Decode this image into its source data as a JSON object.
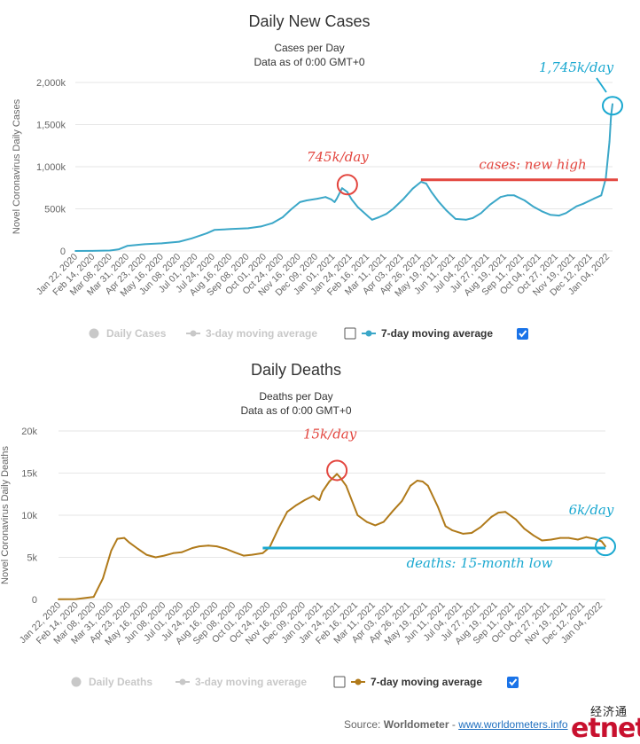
{
  "colors": {
    "cases_line": "#3ba7c8",
    "deaths_line": "#b07a1a",
    "annotation_red": "#e3463f",
    "annotation_cyan": "#1aa8d0",
    "grid": "#e6e6e6",
    "axis_text": "#666666",
    "checkbox_checked": "#1a73e8"
  },
  "footer": {
    "source_label": "Source:",
    "source_name": "Worldometer",
    "dash": "-",
    "link": "www.worldometers.info"
  },
  "logo": {
    "chinese": "经济通",
    "latin": "etnet"
  },
  "chart_data": [
    {
      "type": "line",
      "title": "Daily New Cases",
      "subtitle_1": "Cases per Day",
      "subtitle_2": "Data as of 0:00 GMT+0",
      "ylabel": "Novel Coronavirus Daily Cases",
      "ylim": [
        0,
        2000000
      ],
      "yticks": [
        0,
        500000,
        1000000,
        1500000,
        2000000
      ],
      "ytick_labels": [
        "0",
        "500k",
        "1,000k",
        "1,500k",
        "2,000k"
      ],
      "xlim": [
        "2020-01-22",
        "2022-01-06"
      ],
      "xtick_labels": [
        "Jan 22, 2020",
        "Feb 14, 2020",
        "Mar 08, 2020",
        "Mar 31, 2020",
        "Apr 23, 2020",
        "May 16, 2020",
        "Jun 08, 2020",
        "Jul 01, 2020",
        "Jul 24, 2020",
        "Aug 16, 2020",
        "Sep 08, 2020",
        "Oct 01, 2020",
        "Oct 24, 2020",
        "Nov 16, 2020",
        "Dec 09, 2020",
        "Jan 01, 2021",
        "Jan 24, 2021",
        "Feb 16, 2021",
        "Mar 11, 2021",
        "Apr 03, 2021",
        "Apr 26, 2021",
        "May 19, 2021",
        "Jun 11, 2021",
        "Jul 04, 2021",
        "Jul 27, 2021",
        "Aug 19, 2021",
        "Sep 11, 2021",
        "Oct 04, 2021",
        "Oct 27, 2021",
        "Nov 19, 2021",
        "Dec 12, 2021",
        "Jan 04, 2022"
      ],
      "grid": true,
      "legend_placement": "bottom",
      "legend": [
        {
          "label": "Daily Cases",
          "active": false,
          "marker": "circle"
        },
        {
          "label": "3-day moving average",
          "active": false,
          "marker": "line-dot",
          "checked": false
        },
        {
          "label": "7-day moving average",
          "active": true,
          "marker": "line-dot",
          "checked": true
        }
      ],
      "series": [
        {
          "name": "7-day moving average",
          "x": [
            "2020-01-22",
            "2020-02-14",
            "2020-03-08",
            "2020-03-20",
            "2020-03-31",
            "2020-04-23",
            "2020-05-16",
            "2020-06-08",
            "2020-06-25",
            "2020-07-15",
            "2020-07-25",
            "2020-08-16",
            "2020-09-08",
            "2020-09-25",
            "2020-10-10",
            "2020-10-24",
            "2020-11-05",
            "2020-11-16",
            "2020-11-25",
            "2020-12-09",
            "2020-12-20",
            "2020-12-28",
            "2021-01-01",
            "2021-01-04",
            "2021-01-11",
            "2021-01-18",
            "2021-01-24",
            "2021-02-01",
            "2021-02-16",
            "2021-02-20",
            "2021-03-01",
            "2021-03-11",
            "2021-03-20",
            "2021-04-03",
            "2021-04-15",
            "2021-04-26",
            "2021-05-03",
            "2021-05-10",
            "2021-05-19",
            "2021-05-30",
            "2021-06-11",
            "2021-06-25",
            "2021-07-04",
            "2021-07-15",
            "2021-07-27",
            "2021-08-10",
            "2021-08-19",
            "2021-08-28",
            "2021-09-11",
            "2021-09-22",
            "2021-10-04",
            "2021-10-15",
            "2021-10-27",
            "2021-11-05",
            "2021-11-19",
            "2021-11-28",
            "2021-12-12",
            "2021-12-22",
            "2021-12-28",
            "2022-01-02",
            "2022-01-04",
            "2022-01-06"
          ],
          "y": [
            0,
            1000,
            5000,
            20000,
            60000,
            80000,
            90000,
            110000,
            150000,
            210000,
            250000,
            260000,
            270000,
            290000,
            330000,
            400000,
            500000,
            580000,
            600000,
            620000,
            640000,
            610000,
            580000,
            620000,
            745000,
            700000,
            610000,
            520000,
            400000,
            370000,
            400000,
            440000,
            500000,
            620000,
            740000,
            820000,
            800000,
            700000,
            590000,
            480000,
            380000,
            370000,
            390000,
            450000,
            550000,
            640000,
            660000,
            660000,
            600000,
            530000,
            470000,
            430000,
            420000,
            450000,
            530000,
            560000,
            620000,
            660000,
            860000,
            1300000,
            1600000,
            1745000
          ]
        }
      ],
      "annotations": [
        {
          "text": "745k/day",
          "color": "red",
          "x": "2021-01-11",
          "y": 745000
        },
        {
          "text": "1,745k/day",
          "color": "cyan",
          "x": "2022-01-06",
          "y": 1745000
        },
        {
          "text": "cases: new high",
          "color": "red",
          "line_y": 845000,
          "line_x_start": "2021-04-26"
        }
      ]
    },
    {
      "type": "line",
      "title": "Daily Deaths",
      "subtitle_1": "Deaths per Day",
      "subtitle_2": "Data as of 0:00 GMT+0",
      "ylabel": "Novel Coronavirus Daily Deaths",
      "ylim": [
        0,
        20000
      ],
      "yticks": [
        0,
        5000,
        10000,
        15000,
        20000
      ],
      "ytick_labels": [
        "0",
        "5k",
        "10k",
        "15k",
        "20k"
      ],
      "xlim": [
        "2020-01-22",
        "2022-01-06"
      ],
      "xtick_labels": [
        "Jan 22, 2020",
        "Feb 14, 2020",
        "Mar 08, 2020",
        "Mar 31, 2020",
        "Apr 23, 2020",
        "May 16, 2020",
        "Jun 08, 2020",
        "Jul 01, 2020",
        "Jul 24, 2020",
        "Aug 16, 2020",
        "Sep 08, 2020",
        "Oct 01, 2020",
        "Oct 24, 2020",
        "Nov 16, 2020",
        "Dec 09, 2020",
        "Jan 01, 2021",
        "Jan 24, 2021",
        "Feb 16, 2021",
        "Mar 11, 2021",
        "Apr 03, 2021",
        "Apr 26, 2021",
        "May 19, 2021",
        "Jun 11, 2021",
        "Jul 04, 2021",
        "Jul 27, 2021",
        "Aug 19, 2021",
        "Sep 11, 2021",
        "Oct 04, 2021",
        "Oct 27, 2021",
        "Nov 19, 2021",
        "Dec 12, 2021",
        "Jan 04, 2022"
      ],
      "grid": true,
      "legend_placement": "bottom",
      "legend": [
        {
          "label": "Daily Deaths",
          "active": false,
          "marker": "circle"
        },
        {
          "label": "3-day moving average",
          "active": false,
          "marker": "line-dot",
          "checked": false
        },
        {
          "label": "7-day moving average",
          "active": true,
          "marker": "line-dot",
          "checked": true
        }
      ],
      "series": [
        {
          "name": "7-day moving average",
          "x": [
            "2020-01-22",
            "2020-02-14",
            "2020-03-08",
            "2020-03-20",
            "2020-03-31",
            "2020-04-08",
            "2020-04-17",
            "2020-04-23",
            "2020-05-05",
            "2020-05-16",
            "2020-05-28",
            "2020-06-08",
            "2020-06-20",
            "2020-07-01",
            "2020-07-15",
            "2020-07-24",
            "2020-08-05",
            "2020-08-16",
            "2020-08-28",
            "2020-09-08",
            "2020-09-20",
            "2020-10-01",
            "2020-10-15",
            "2020-10-24",
            "2020-11-05",
            "2020-11-16",
            "2020-11-28",
            "2020-12-09",
            "2020-12-20",
            "2020-12-28",
            "2021-01-01",
            "2021-01-10",
            "2021-01-20",
            "2021-01-24",
            "2021-02-01",
            "2021-02-16",
            "2021-02-28",
            "2021-03-11",
            "2021-03-22",
            "2021-04-03",
            "2021-04-15",
            "2021-04-26",
            "2021-05-05",
            "2021-05-12",
            "2021-05-19",
            "2021-06-01",
            "2021-06-11",
            "2021-06-20",
            "2021-07-04",
            "2021-07-15",
            "2021-07-27",
            "2021-08-10",
            "2021-08-19",
            "2021-08-28",
            "2021-09-11",
            "2021-09-22",
            "2021-10-04",
            "2021-10-15",
            "2021-10-27",
            "2021-11-08",
            "2021-11-19",
            "2021-12-01",
            "2021-12-12",
            "2021-12-22",
            "2022-01-01",
            "2022-01-06"
          ],
          "y": [
            20,
            40,
            300,
            2500,
            5800,
            7200,
            7300,
            6800,
            6000,
            5300,
            5000,
            5200,
            5500,
            5600,
            6100,
            6300,
            6400,
            6300,
            6000,
            5600,
            5200,
            5300,
            5500,
            6200,
            8500,
            10400,
            11200,
            11800,
            12300,
            11800,
            12800,
            14000,
            14900,
            14500,
            13500,
            10000,
            9200,
            8800,
            9200,
            10500,
            11700,
            13500,
            14100,
            14000,
            13500,
            11000,
            8700,
            8200,
            7800,
            7900,
            8600,
            9800,
            10300,
            10400,
            9500,
            8400,
            7600,
            7000,
            7100,
            7300,
            7300,
            7100,
            7400,
            7200,
            6900,
            6300
          ]
        }
      ],
      "annotations": [
        {
          "text": "15k/day",
          "color": "red",
          "x": "2021-01-20",
          "y": 14900
        },
        {
          "text": "6k/day",
          "color": "cyan",
          "x": "2022-01-06",
          "y": 6300
        },
        {
          "text": "deaths: 15-month low",
          "color": "cyan",
          "line_y": 6100,
          "line_x_start": "2020-10-15"
        }
      ]
    }
  ]
}
